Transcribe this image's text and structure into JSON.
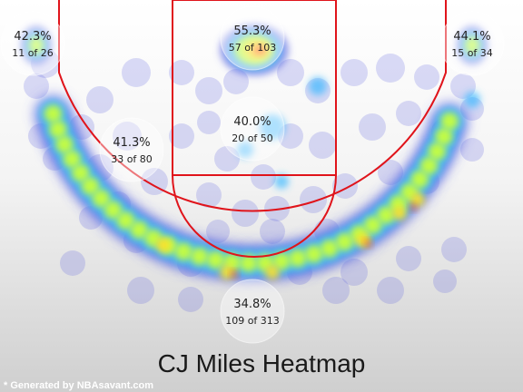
{
  "chart_data": {
    "type": "heatmap",
    "title": "CJ Miles Heatmap",
    "credit": "* Generated by NBAsavant.com",
    "colors": {
      "court_lines": "#e0141b",
      "heat_low": "#5a60e0",
      "heat_mid": "#3ab8ff",
      "heat_high": "#c8ff3c",
      "heat_peak": "#ffe02a",
      "heat_max": "#ff4a1a"
    },
    "zones": [
      {
        "id": "left-corner-three",
        "pct": "42.3%",
        "made_of_attempts": "11 of 26"
      },
      {
        "id": "restricted-area",
        "pct": "55.3%",
        "made_of_attempts": "57 of 103"
      },
      {
        "id": "right-corner-three",
        "pct": "44.1%",
        "made_of_attempts": "15 of 34"
      },
      {
        "id": "left-midrange",
        "pct": "41.3%",
        "made_of_attempts": "33 of 80"
      },
      {
        "id": "paint-non-ra",
        "pct": "40.0%",
        "made_of_attempts": "20 of 50"
      },
      {
        "id": "above-break-three",
        "pct": "34.8%",
        "made_of_attempts": "109 of 313"
      }
    ]
  }
}
